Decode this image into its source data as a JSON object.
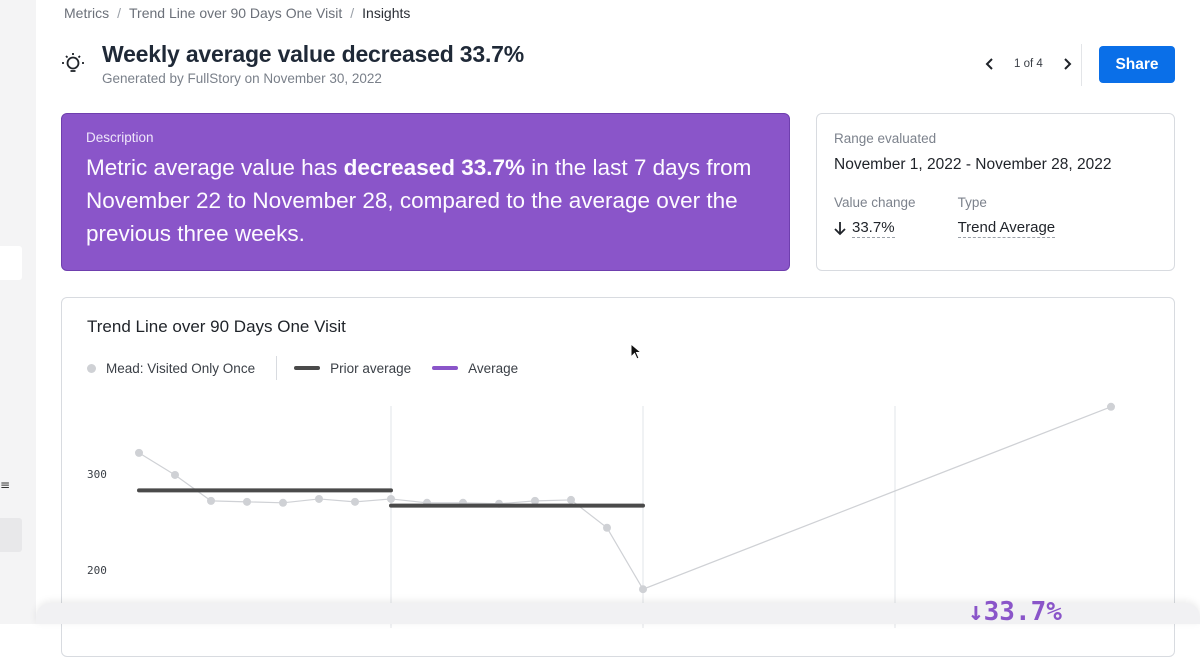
{
  "breadcrumb": {
    "items": [
      "Metrics",
      "Trend Line over 90 Days One Visit",
      "Insights"
    ],
    "separator": "/"
  },
  "header": {
    "icon": "lightbulb-icon",
    "title": "Weekly average value decreased 33.7%",
    "generated": "Generated by FullStory on November 30, 2022"
  },
  "pager": {
    "count": "1 of 4",
    "prev_icon": "chevron-left-icon",
    "next_icon": "chevron-right-icon"
  },
  "share_label": "Share",
  "description": {
    "label": "Description",
    "text_before": "Metric average value has ",
    "text_bold": "decreased 33.7%",
    "text_after": " in the last 7 days from November 22 to November 28, compared to the average over the previous three weeks."
  },
  "range": {
    "label": "Range evaluated",
    "value": "November 1, 2022 - November 28, 2022",
    "value_change_label": "Value change",
    "value_change": "33.7%",
    "value_change_icon": "arrow-down-icon",
    "type_label": "Type",
    "type_value": "Trend Average"
  },
  "chart": {
    "title": "Trend Line over 90 Days One Visit",
    "legend": [
      {
        "label": "Mead: Visited Only Once",
        "kind": "dot",
        "color": "#cfd1d5"
      },
      {
        "label": "Prior average",
        "kind": "line",
        "color": "#4a4a4a"
      },
      {
        "label": "Average",
        "kind": "line",
        "color": "#8a55c9"
      }
    ],
    "change_label": "↓33.7%"
  },
  "chart_data": {
    "type": "line",
    "title": "Trend Line over 90 Days One Visit",
    "xlabel": "",
    "ylabel": "",
    "y_ticks": [
      300,
      200
    ],
    "ylim": [
      180,
      350
    ],
    "series": [
      {
        "name": "Mead: Visited Only Once",
        "color": "#cfd1d5",
        "x": [
          1,
          2,
          3,
          4,
          5,
          6,
          7,
          8,
          9,
          10,
          11,
          12,
          13,
          14,
          15,
          28
        ],
        "values": [
          322,
          299,
          272,
          271,
          270,
          274,
          271,
          274,
          270,
          270,
          269,
          272,
          273,
          244,
          180,
          370
        ]
      }
    ],
    "prior_average": [
      {
        "x_start": 1,
        "x_end": 8,
        "value": 283
      },
      {
        "x_start": 8,
        "x_end": 15,
        "value": 267
      }
    ],
    "week_boundaries": [
      8,
      15,
      22
    ]
  },
  "colors": {
    "accent": "#0a6fe8",
    "purple": "#8a55c9"
  }
}
